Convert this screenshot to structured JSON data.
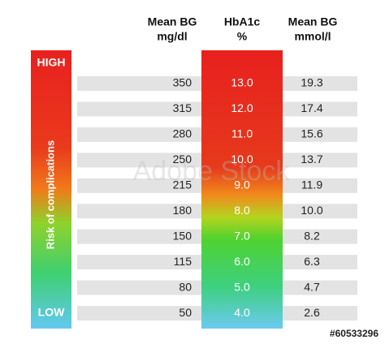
{
  "header": {
    "columns": [
      [
        "Mean BG",
        "mg/dl"
      ],
      [
        "HbA1c",
        "%"
      ],
      [
        "Mean BG",
        "mmol/l"
      ]
    ]
  },
  "side": {
    "high": "HIGH",
    "low": "LOW",
    "label": "Risk of complications"
  },
  "table": {
    "rows": [
      [
        "350",
        "13.0",
        "19.3"
      ],
      [
        "315",
        "12.0",
        "17.4"
      ],
      [
        "280",
        "11.0",
        "15.6"
      ],
      [
        "250",
        "10.0",
        "13.7"
      ],
      [
        "215",
        "9.0",
        "11.9"
      ],
      [
        "180",
        "8.0",
        "10.0"
      ],
      [
        "150",
        "7.0",
        "8.2"
      ],
      [
        "115",
        "6.0",
        "6.3"
      ],
      [
        "80",
        "5.0",
        "4.7"
      ],
      [
        "50",
        "4.0",
        "2.6"
      ]
    ]
  },
  "watermark": "Adobe Stock",
  "image_id": "#60533296"
}
